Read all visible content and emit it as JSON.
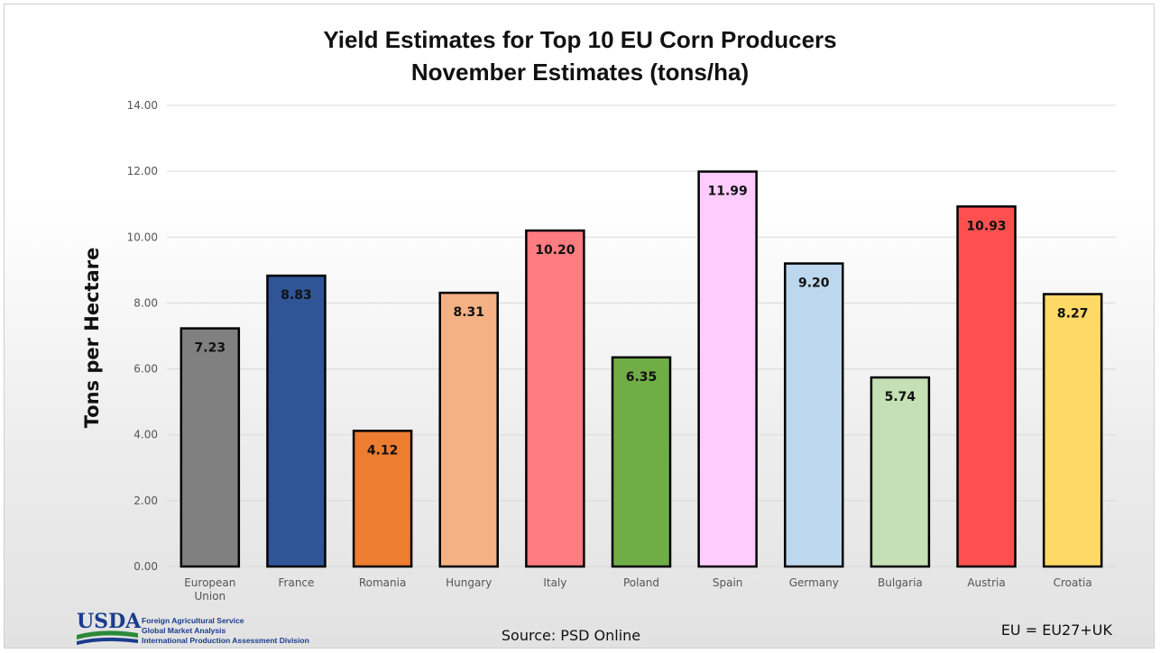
{
  "chart_data": {
    "type": "bar",
    "title": "Yield Estimates for Top 10 EU Corn Producers",
    "subtitle": "November Estimates (tons/ha)",
    "xlabel": "",
    "ylabel": "Tons per Hectare",
    "ylim": [
      0,
      14
    ],
    "yticks": [
      "0.00",
      "2.00",
      "4.00",
      "6.00",
      "8.00",
      "10.00",
      "12.00",
      "14.00"
    ],
    "grid": true,
    "categories": [
      "European Union",
      "France",
      "Romania",
      "Hungary",
      "Italy",
      "Poland",
      "Spain",
      "Germany",
      "Bulgaria",
      "Austria",
      "Croatia"
    ],
    "values": [
      7.23,
      8.83,
      4.12,
      8.31,
      10.2,
      6.35,
      11.99,
      9.2,
      5.74,
      10.93,
      8.27
    ],
    "data_labels": [
      "7.23",
      "8.83",
      "4.12",
      "8.31",
      "10.20",
      "6.35",
      "11.99",
      "9.20",
      "5.74",
      "10.93",
      "8.27"
    ],
    "colors": [
      "#808080",
      "#2f5597",
      "#ed7d31",
      "#f4b183",
      "#ff7c80",
      "#70ad47",
      "#ffccff",
      "#bdd7ee",
      "#c5e0b4",
      "#ff5050",
      "#ffd966"
    ]
  },
  "footer": {
    "logo_text": "USDA",
    "logo_lines": [
      "Foreign Agricultural Service",
      "Global Market Analysis",
      "International Production Assessment Division"
    ],
    "source": "Source: PSD Online",
    "note": "EU = EU27+UK"
  }
}
